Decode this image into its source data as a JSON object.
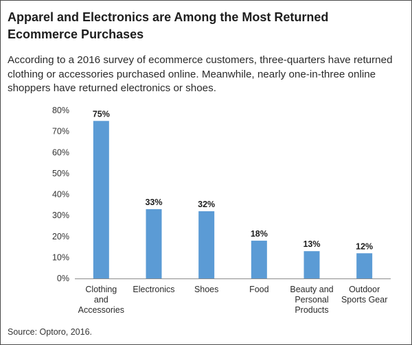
{
  "title": "Apparel and Electronics are Among the Most Returned Ecommerce Purchases",
  "subtitle": "According to a 2016 survey of ecommerce customers, three-quarters have returned clothing or accessories purchased online. Meanwhile, nearly one-in-three online shoppers have returned electronics or shoes.",
  "source": "Source: Optoro, 2016.",
  "colors": {
    "bar": "#5b9bd5",
    "axis": "#8c8c8c"
  },
  "chart_data": {
    "type": "bar",
    "title": "",
    "xlabel": "",
    "ylabel": "",
    "categories": [
      [
        "Clothing",
        "and",
        "Accessories"
      ],
      [
        "Electronics"
      ],
      [
        "Shoes"
      ],
      [
        "Food"
      ],
      [
        "Beauty and",
        "Personal",
        "Products"
      ],
      [
        "Outdoor",
        "Sports Gear"
      ]
    ],
    "values": [
      75,
      33,
      32,
      18,
      13,
      12
    ],
    "data_labels": [
      "75%",
      "33%",
      "32%",
      "18%",
      "13%",
      "12%"
    ],
    "ylim": [
      0,
      80
    ],
    "yticks": [
      {
        "value": 0,
        "label": "0%"
      },
      {
        "value": 10,
        "label": "10%"
      },
      {
        "value": 20,
        "label": "20%"
      },
      {
        "value": 30,
        "label": "30%"
      },
      {
        "value": 40,
        "label": "40%"
      },
      {
        "value": 50,
        "label": "50%"
      },
      {
        "value": 60,
        "label": "60%"
      },
      {
        "value": 70,
        "label": "70%"
      },
      {
        "value": 80,
        "label": "80%"
      }
    ],
    "grid": false,
    "legend": "none"
  }
}
